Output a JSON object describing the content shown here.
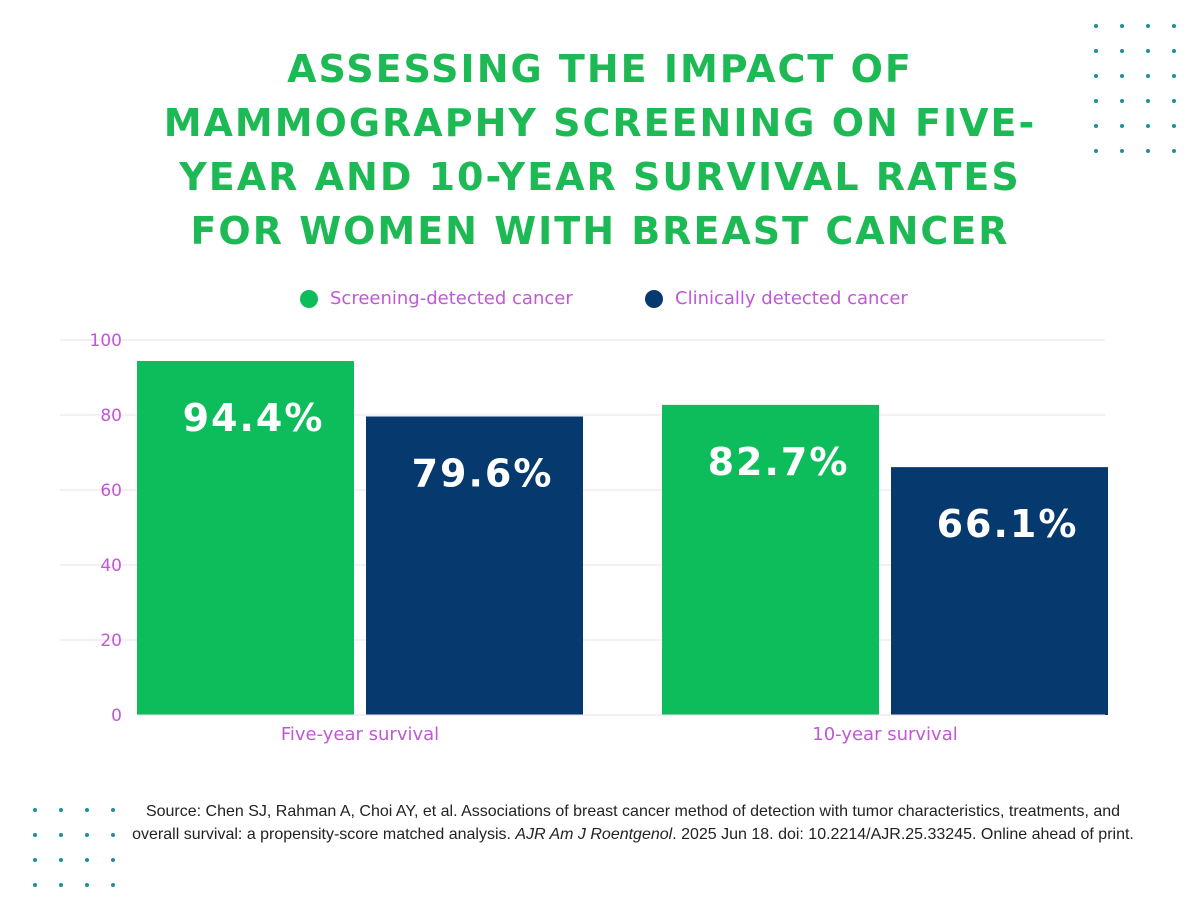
{
  "title": "ASSESSING THE IMPACT OF MAMMOGRAPHY SCREENING ON FIVE-YEAR AND 10-YEAR SURVIVAL RATES FOR WOMEN WITH BREAST CANCER",
  "colors": {
    "screening": "#0dbd5b",
    "clinical": "#063a6f",
    "title": "#1db954",
    "axis_text": "#c157d8",
    "gridline": "#f1dcf5",
    "decor_dots": "#1f8f9a"
  },
  "chart_data": {
    "type": "bar",
    "title": "ASSESSING THE IMPACT OF MAMMOGRAPHY SCREENING ON FIVE-YEAR AND 10-YEAR SURVIVAL RATES FOR WOMEN WITH BREAST CANCER",
    "categories": [
      "Five-year survival",
      "10-year survival"
    ],
    "series": [
      {
        "name": "Screening-detected cancer",
        "values": [
          94.4,
          82.7
        ],
        "labels": [
          "94.4%",
          "82.7%"
        ]
      },
      {
        "name": "Clinically detected cancer",
        "values": [
          79.6,
          66.1
        ],
        "labels": [
          "79.6%",
          "66.1%"
        ]
      }
    ],
    "yticks": [
      "0",
      "20",
      "40",
      "60",
      "80",
      "100"
    ],
    "ylim": [
      0,
      100
    ],
    "xlabel": "",
    "ylabel": "",
    "legend": "top-center",
    "grid": true
  },
  "source": {
    "prefix": "Source: Chen SJ, Rahman A, Choi AY, et al. Associations of breast cancer method of detection with tumor characteristics, treatments, and overall survival: a propensity-score matched analysis. ",
    "journal": "AJR Am J Roentgenol",
    "suffix": ". 2025 Jun 18. doi: 10.2214/AJR.25.33245. Online ahead of print."
  }
}
